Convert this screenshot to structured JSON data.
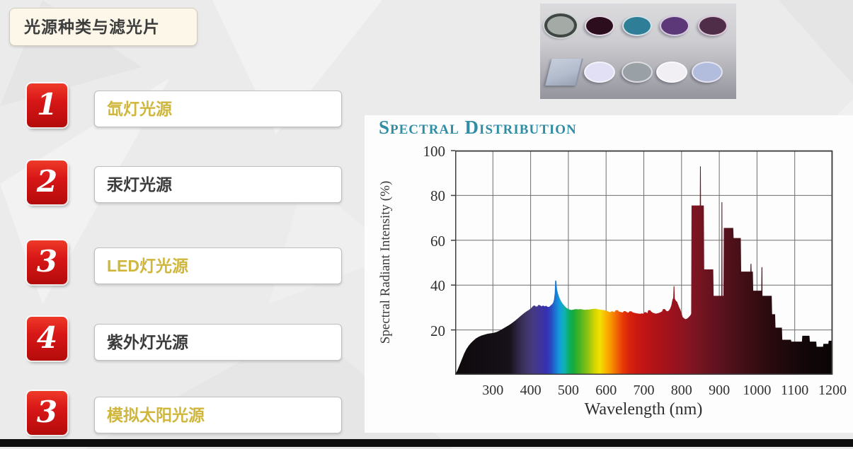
{
  "slide": {
    "title": "光源种类与滤光片",
    "items": [
      {
        "num": "1",
        "label": "氙灯光源",
        "highlight": true
      },
      {
        "num": "2",
        "label": "汞灯光源",
        "highlight": false
      },
      {
        "num": "3",
        "label": "LED灯光源",
        "highlight": true
      },
      {
        "num": "4",
        "label": "紫外灯光源",
        "highlight": false
      },
      {
        "num": "3",
        "label": "模拟太阳光源",
        "highlight": true
      }
    ],
    "colors": {
      "badge_red": "#d81717",
      "gold_text": "#cfb63d",
      "dark_text": "#3b3b3b",
      "title_box_bg": "#fcf7e8",
      "slide_bg": "#ebebeb",
      "bottom_bar": "#0e0e0e",
      "chart_panel_bg": "#fdfdfd"
    }
  },
  "filters_image": {
    "row1": [
      {
        "name": "gray-nd-filter",
        "shape": "circle-mounted",
        "color": "#a4aaa6",
        "ring": "#3f4644"
      },
      {
        "name": "dark-maroon-filter",
        "shape": "circle",
        "color": "#2b0d1e",
        "ring": "#e4d8e4"
      },
      {
        "name": "teal-filter",
        "shape": "circle",
        "color": "#2e7e98",
        "ring": "#d2e2e8"
      },
      {
        "name": "purple-filter",
        "shape": "circle",
        "color": "#5c3878",
        "ring": "#d8cce0"
      },
      {
        "name": "plum-filter",
        "shape": "circle",
        "color": "#4f2c48",
        "ring": "#dcc8d8"
      }
    ],
    "row2": [
      {
        "name": "square-plate-filter",
        "shape": "plate",
        "color": "#b4bdcd",
        "ring": "#8d96a8"
      },
      {
        "name": "pale-lavender-filter",
        "shape": "circle",
        "color": "#e2e0f4",
        "ring": "#f4f2fa"
      },
      {
        "name": "gray-filter",
        "shape": "circle",
        "color": "#99a0a6",
        "ring": "#dcdcde"
      },
      {
        "name": "white-filter",
        "shape": "circle",
        "color": "#f1eff3",
        "ring": "#fafafc"
      },
      {
        "name": "periwinkle-filter",
        "shape": "circle",
        "color": "#b2bcdc",
        "ring": "#e2e4f0"
      }
    ]
  },
  "chart_data": {
    "type": "area",
    "title": "Spectral Distribution",
    "title_color": "#2f8da4",
    "xlabel": "Wavelength (nm)",
    "ylabel": "Spectral Radiant Intensity (%)",
    "xlim": [
      200,
      1200
    ],
    "ylim": [
      0,
      100
    ],
    "x_ticks": [
      300,
      400,
      500,
      600,
      700,
      800,
      900,
      1000,
      1100,
      1200
    ],
    "y_ticks": [
      100,
      80,
      60,
      40,
      20
    ],
    "grid": true,
    "series": [
      {
        "name": "xenon-lamp spectral radiant intensity envelope (nm, %)",
        "points": [
          [
            200,
            0
          ],
          [
            206,
            2
          ],
          [
            212,
            4.5
          ],
          [
            218,
            7
          ],
          [
            224,
            9.5
          ],
          [
            230,
            11.5
          ],
          [
            236,
            13
          ],
          [
            242,
            14.2
          ],
          [
            248,
            15.2
          ],
          [
            255,
            16.2
          ],
          [
            262,
            16.9
          ],
          [
            270,
            17.5
          ],
          [
            278,
            17.9
          ],
          [
            286,
            18.3
          ],
          [
            294,
            18.5
          ],
          [
            302,
            18.7
          ],
          [
            310,
            19.1
          ],
          [
            318,
            19.7
          ],
          [
            326,
            20.5
          ],
          [
            334,
            21.3
          ],
          [
            342,
            22.1
          ],
          [
            350,
            23
          ],
          [
            358,
            24
          ],
          [
            366,
            25.1
          ],
          [
            374,
            26.3
          ],
          [
            382,
            27.4
          ],
          [
            390,
            28.4
          ],
          [
            396,
            29
          ],
          [
            402,
            29.8
          ],
          [
            406,
            30.6
          ],
          [
            410,
            31
          ],
          [
            414,
            30.4
          ],
          [
            418,
            30.5
          ],
          [
            421,
            31.2
          ],
          [
            425,
            31
          ],
          [
            429,
            30.5
          ],
          [
            433,
            30.9
          ],
          [
            437,
            30.5
          ],
          [
            441,
            30.8
          ],
          [
            445,
            30.3
          ],
          [
            449,
            30.3
          ],
          [
            453,
            30.9
          ],
          [
            457,
            31.5
          ],
          [
            460,
            32.3
          ],
          [
            462,
            33.6
          ],
          [
            464,
            36.5
          ],
          [
            465,
            42
          ],
          [
            468,
            42
          ],
          [
            470,
            38
          ],
          [
            473,
            36
          ],
          [
            476,
            34.5
          ],
          [
            479,
            33.4
          ],
          [
            482,
            32.4
          ],
          [
            486,
            31.5
          ],
          [
            490,
            30.7
          ],
          [
            494,
            30
          ],
          [
            498,
            29.5
          ],
          [
            503,
            29.1
          ],
          [
            508,
            28.9
          ],
          [
            514,
            29.1
          ],
          [
            520,
            29.3
          ],
          [
            526,
            29.2
          ],
          [
            532,
            29.3
          ],
          [
            538,
            29.1
          ],
          [
            544,
            29
          ],
          [
            550,
            29.1
          ],
          [
            556,
            29.1
          ],
          [
            562,
            29.3
          ],
          [
            568,
            29.4
          ],
          [
            574,
            29.4
          ],
          [
            580,
            29.2
          ],
          [
            586,
            29
          ],
          [
            592,
            28.9
          ],
          [
            598,
            28.7
          ],
          [
            604,
            28.4
          ],
          [
            608,
            28
          ],
          [
            612,
            28
          ],
          [
            615,
            28.4
          ],
          [
            619,
            28.1
          ],
          [
            622,
            27.9
          ],
          [
            625,
            28.8
          ],
          [
            631,
            28.8
          ],
          [
            634,
            28.2
          ],
          [
            639,
            28
          ],
          [
            644,
            27.8
          ],
          [
            647,
            28.4
          ],
          [
            651,
            28.4
          ],
          [
            655,
            27.9
          ],
          [
            659,
            27.7
          ],
          [
            662,
            28.3
          ],
          [
            667,
            28.3
          ],
          [
            671,
            27.8
          ],
          [
            676,
            27.6
          ],
          [
            681,
            27.4
          ],
          [
            686,
            27.3
          ],
          [
            691,
            27.2
          ],
          [
            695,
            27.4
          ],
          [
            699,
            27.2
          ],
          [
            702,
            27.9
          ],
          [
            706,
            27.9
          ],
          [
            709,
            27.4
          ],
          [
            712,
            28.8
          ],
          [
            717,
            28.8
          ],
          [
            720,
            28.1
          ],
          [
            724,
            27.7
          ],
          [
            728,
            27.4
          ],
          [
            733,
            27.3
          ],
          [
            738,
            27.5
          ],
          [
            743,
            27.8
          ],
          [
            748,
            28.2
          ],
          [
            751,
            29.3
          ],
          [
            756,
            29.3
          ],
          [
            759,
            28.6
          ],
          [
            763,
            28.3
          ],
          [
            767,
            28.8
          ],
          [
            770,
            29.6
          ],
          [
            773,
            31
          ],
          [
            776,
            33.6
          ],
          [
            778,
            34.2
          ],
          [
            779,
            39.5
          ],
          [
            781,
            39.5
          ],
          [
            782,
            34
          ],
          [
            785,
            33
          ],
          [
            788,
            32.6
          ],
          [
            791,
            31.3
          ],
          [
            794,
            30
          ],
          [
            797,
            29
          ],
          [
            800,
            27.5
          ],
          [
            803,
            25.8
          ],
          [
            807,
            25.1
          ],
          [
            811,
            24.8
          ],
          [
            815,
            25.1
          ],
          [
            819,
            25.7
          ],
          [
            823,
            26.4
          ],
          [
            825.5,
            27.2
          ],
          [
            826.5,
            75.5
          ],
          [
            848.5,
            75.5
          ],
          [
            849,
            93
          ],
          [
            851,
            93
          ],
          [
            851.5,
            75.5
          ],
          [
            859,
            75.5
          ],
          [
            860,
            47
          ],
          [
            884,
            47
          ],
          [
            885,
            35.2
          ],
          [
            905.5,
            35.2
          ],
          [
            906,
            77
          ],
          [
            908,
            77
          ],
          [
            908.5,
            35.2
          ],
          [
            911,
            35.2
          ],
          [
            912,
            65.5
          ],
          [
            937,
            65.5
          ],
          [
            938,
            61
          ],
          [
            957,
            61
          ],
          [
            958,
            46
          ],
          [
            982.5,
            46
          ],
          [
            983,
            49.5
          ],
          [
            985,
            49.5
          ],
          [
            985.5,
            46
          ],
          [
            989,
            46
          ],
          [
            990,
            37.5
          ],
          [
            1011.5,
            37.5
          ],
          [
            1012,
            48
          ],
          [
            1014,
            48
          ],
          [
            1014.5,
            35.2
          ],
          [
            1039,
            35.2
          ],
          [
            1040,
            27
          ],
          [
            1048,
            27
          ],
          [
            1049,
            21
          ],
          [
            1066,
            21
          ],
          [
            1067,
            15.6
          ],
          [
            1090,
            15.6
          ],
          [
            1091,
            14.8
          ],
          [
            1119,
            14.8
          ],
          [
            1120,
            17.4
          ],
          [
            1139,
            17.4
          ],
          [
            1140,
            14.8
          ],
          [
            1157,
            14.8
          ],
          [
            1158,
            12.5
          ],
          [
            1175,
            12.5
          ],
          [
            1176,
            13.8
          ],
          [
            1189,
            13.8
          ],
          [
            1190,
            15.2
          ],
          [
            1200,
            15.2
          ]
        ]
      }
    ],
    "spectrum_gradient": [
      [
        200,
        "#0d090b"
      ],
      [
        345,
        "#17111a"
      ],
      [
        365,
        "#2d2542"
      ],
      [
        385,
        "#3f3462"
      ],
      [
        405,
        "#463a80"
      ],
      [
        425,
        "#40349c"
      ],
      [
        443,
        "#3432b2"
      ],
      [
        455,
        "#2a4cc0"
      ],
      [
        465,
        "#1b74d2"
      ],
      [
        477,
        "#129fdc"
      ],
      [
        490,
        "#0fb2ae"
      ],
      [
        500,
        "#0cae6e"
      ],
      [
        513,
        "#15aa3a"
      ],
      [
        532,
        "#4fb422"
      ],
      [
        552,
        "#8fc312"
      ],
      [
        570,
        "#d2d600"
      ],
      [
        583,
        "#f2e000"
      ],
      [
        598,
        "#f9ba00"
      ],
      [
        614,
        "#f79200"
      ],
      [
        629,
        "#f26406"
      ],
      [
        644,
        "#e63c08"
      ],
      [
        660,
        "#d9240c"
      ],
      [
        680,
        "#cc1910"
      ],
      [
        700,
        "#c11414"
      ],
      [
        730,
        "#b01318"
      ],
      [
        760,
        "#a3131c"
      ],
      [
        790,
        "#94131e"
      ],
      [
        820,
        "#851522"
      ],
      [
        860,
        "#701320"
      ],
      [
        900,
        "#5e1220"
      ],
      [
        940,
        "#4c1019"
      ],
      [
        980,
        "#3c0e14"
      ],
      [
        1020,
        "#2e0b10"
      ],
      [
        1060,
        "#220a0c"
      ],
      [
        1100,
        "#18080a"
      ],
      [
        1145,
        "#0f0608"
      ],
      [
        1200,
        "#0b0506"
      ]
    ]
  }
}
